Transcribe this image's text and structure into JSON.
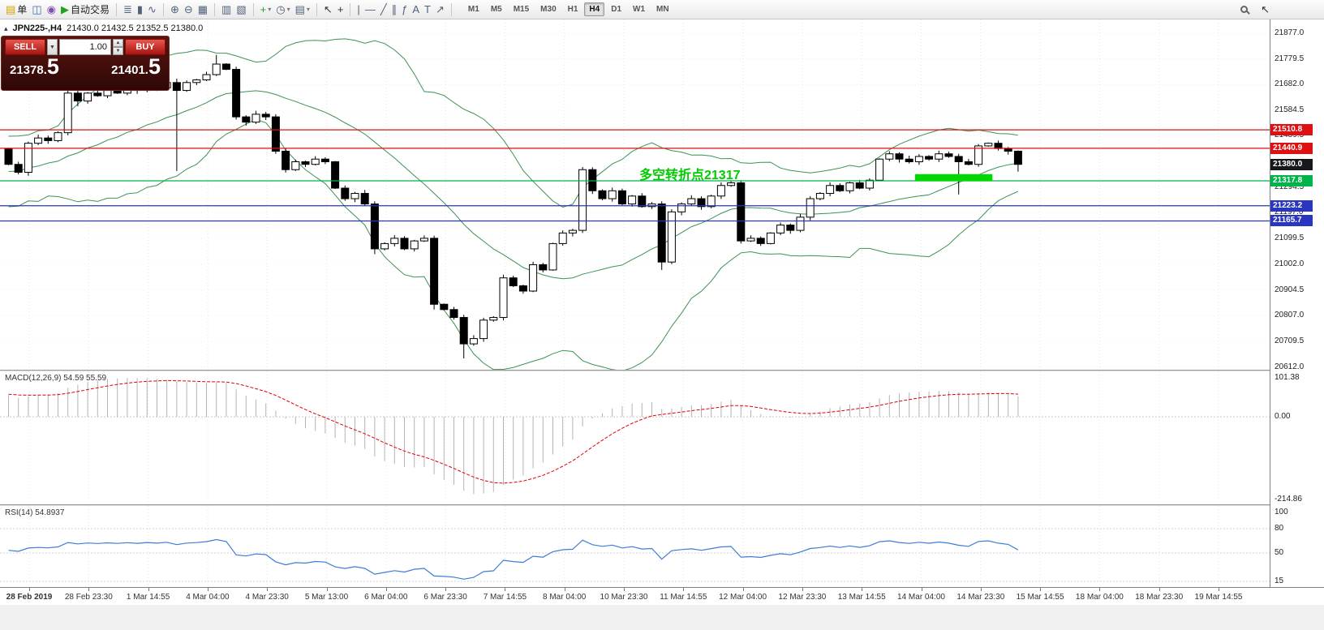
{
  "window": {
    "title_symbol": "JPN225-,H4",
    "title_ohlc": "21430.0 21432.5 21352.5 21380.0"
  },
  "toolbar": {
    "pointer_glyph": "↖",
    "groups": [
      {
        "items": [
          {
            "name": "new-order-button",
            "glyph": "▤",
            "glyph_color": "#d6a400",
            "label": "单"
          },
          {
            "name": "chart-window-button",
            "glyph": "◫",
            "glyph_color": "#3f6fae"
          },
          {
            "name": "navigator-button",
            "glyph": "◉",
            "glyph_color": "#7d4fae"
          },
          {
            "name": "autotrading-button",
            "glyph": "▶",
            "glyph_color": "#1ea51e",
            "label": "自动交易"
          }
        ]
      },
      {
        "items": [
          {
            "name": "bars-chart-button",
            "glyph": "≣",
            "glyph_color": "#51617a"
          },
          {
            "name": "candlestick-chart-button",
            "glyph": "▮",
            "glyph_color": "#51617a"
          },
          {
            "name": "line-chart-button",
            "glyph": "∿",
            "glyph_color": "#51617a"
          }
        ]
      },
      {
        "items": [
          {
            "name": "zoom-in-button",
            "glyph": "⊕",
            "glyph_color": "#51617a"
          },
          {
            "name": "zoom-out-button",
            "glyph": "⊖",
            "glyph_color": "#51617a"
          },
          {
            "name": "tile-windows-button",
            "glyph": "▦",
            "glyph_color": "#51617a"
          }
        ]
      },
      {
        "items": [
          {
            "name": "cascade-windows-button",
            "glyph": "▥",
            "glyph_color": "#51617a"
          },
          {
            "name": "arrange-windows-button",
            "glyph": "▧",
            "glyph_color": "#51617a"
          }
        ]
      },
      {
        "items": [
          {
            "name": "indicators-button",
            "glyph": "+",
            "glyph_color": "#1ea51e",
            "caret": true
          },
          {
            "name": "periods-button",
            "glyph": "◷",
            "glyph_color": "#51617a",
            "caret": true
          },
          {
            "name": "templates-button",
            "glyph": "▤",
            "glyph_color": "#51617a",
            "caret": true
          }
        ]
      },
      {
        "items": [
          {
            "name": "cursor-button",
            "glyph": "↖",
            "glyph_color": "#333333"
          },
          {
            "name": "crosshair-button",
            "glyph": "+",
            "glyph_color": "#333333"
          }
        ]
      },
      {
        "items": [
          {
            "name": "vertical-line-button",
            "glyph": "|",
            "glyph_color": "#51617a"
          },
          {
            "name": "horizontal-line-button",
            "glyph": "—",
            "glyph_color": "#51617a"
          },
          {
            "name": "trendline-button",
            "glyph": "╱",
            "glyph_color": "#51617a"
          },
          {
            "name": "channel-button",
            "glyph": "∥",
            "glyph_color": "#51617a"
          },
          {
            "name": "fibonacci-button",
            "glyph": "ƒ",
            "glyph_color": "#51617a"
          },
          {
            "name": "text-button",
            "glyph": "A",
            "glyph_color": "#51617a"
          },
          {
            "name": "label-button",
            "glyph": "T",
            "glyph_color": "#51617a"
          },
          {
            "name": "arrows-button",
            "glyph": "↗",
            "glyph_color": "#51617a"
          }
        ]
      }
    ],
    "timeframes": [
      "M1",
      "M5",
      "M15",
      "M30",
      "H1",
      "H4",
      "D1",
      "W1",
      "MN"
    ],
    "active_timeframe": "H4"
  },
  "trade_panel": {
    "sell_label": "SELL",
    "buy_label": "BUY",
    "volume": "1.00",
    "sell_price": {
      "base": "21378.",
      "big": "5"
    },
    "buy_price": {
      "base": "21401.",
      "big": "5"
    }
  },
  "chart": {
    "annotation": {
      "text": "多空转折点21317",
      "color": "#00cc00"
    },
    "price_axis_labels": [
      "21877.0",
      "21779.5",
      "21682.0",
      "21584.5",
      "21489.5",
      "21294.5",
      "21197.0",
      "21099.5",
      "21002.0",
      "20904.5",
      "20807.0",
      "20709.5",
      "20612.0"
    ],
    "price_tags": [
      {
        "value": "21510.8",
        "price": 21510.8,
        "color": "#dd1111"
      },
      {
        "value": "21440.9",
        "price": 21440.9,
        "color": "#dd1111"
      },
      {
        "value": "21380.0",
        "price": 21380.0,
        "color": "#15181c"
      },
      {
        "value": "21317.8",
        "price": 21317.8,
        "color": "#00b44a"
      },
      {
        "value": "21223.2",
        "price": 21223.2,
        "color": "#2a35c0"
      },
      {
        "value": "21165.7",
        "price": 21165.7,
        "color": "#2a35c0"
      }
    ],
    "hlines": [
      {
        "price": 21510.8,
        "color": "#dd1111"
      },
      {
        "price": 21440.9,
        "color": "#dd1111"
      },
      {
        "price": 21317.8,
        "color": "#00b44a"
      },
      {
        "price": 21223.2,
        "color": "#2a35c0"
      },
      {
        "price": 21165.7,
        "color": "#2a35c0"
      }
    ],
    "highlight": {
      "i1": 92,
      "i2": 99,
      "price_top": 21343,
      "price_bottom": 21316,
      "color": "#00d800"
    },
    "time_labels": [
      "28 Feb 2019",
      "28 Feb 23:30",
      "1 Mar 14:55",
      "4 Mar 04:00",
      "4 Mar 23:30",
      "5 Mar 13:00",
      "6 Mar 04:00",
      "6 Mar 23:30",
      "7 Mar 14:55",
      "8 Mar 04:00",
      "10 Mar 23:30",
      "11 Mar 14:55",
      "12 Mar 04:00",
      "12 Mar 23:30",
      "13 Mar 14:55",
      "14 Mar 04:00",
      "14 Mar 23:30",
      "15 Mar 14:55",
      "18 Mar 04:00",
      "18 Mar 23:30",
      "19 Mar 14:55"
    ]
  },
  "macd": {
    "label": "MACD(12,26,9) 54.59 55.59",
    "axis_labels": [
      "101.38",
      "0.00",
      "-214.86"
    ],
    "params": [
      12,
      26,
      9
    ]
  },
  "rsi": {
    "label": "RSI(14) 54.8937",
    "axis_labels": [
      "100",
      "80",
      "50",
      "15"
    ],
    "period": 14,
    "levels": [
      80,
      50,
      15
    ]
  },
  "chart_data": {
    "type": "candlestick",
    "symbol": "JPN225-",
    "timeframe": "H4",
    "title": "JPN225-,H4",
    "last_ohlc": {
      "open": 21430.0,
      "high": 21432.5,
      "low": 21352.5,
      "close": 21380.0
    },
    "ylim": [
      20602,
      21929
    ],
    "x0": 10.5,
    "dx": 12.2,
    "open_first": 21440,
    "closes": [
      21380,
      21350,
      21460,
      21480,
      21470,
      21500,
      21650,
      21620,
      21650,
      21640,
      21660,
      21650,
      21670,
      21660,
      21680,
      21670,
      21690,
      21660,
      21690,
      21700,
      21720,
      21760,
      21740,
      21560,
      21540,
      21570,
      21560,
      21430,
      21360,
      21390,
      21380,
      21400,
      21390,
      21290,
      21250,
      21270,
      21230,
      21060,
      21080,
      21100,
      21060,
      21090,
      21100,
      20850,
      20830,
      20800,
      20700,
      20720,
      20790,
      20800,
      20950,
      20920,
      20900,
      21000,
      20980,
      21080,
      21120,
      21130,
      21360,
      21280,
      21250,
      21280,
      21230,
      21260,
      21220,
      21230,
      21010,
      21200,
      21230,
      21250,
      21220,
      21260,
      21300,
      21310,
      21090,
      21100,
      21080,
      21120,
      21150,
      21130,
      21180,
      21250,
      21270,
      21300,
      21280,
      21310,
      21290,
      21320,
      21400,
      21420,
      21400,
      21390,
      21410,
      21400,
      21420,
      21410,
      21390,
      21380,
      21450,
      21460,
      21440,
      21430,
      21380
    ],
    "history_closes": [
      21100,
      21220,
      21120,
      21240,
      21140,
      21260,
      21160,
      21280,
      21180,
      21300,
      21200,
      21320,
      21220,
      21340,
      21240,
      21360,
      21260,
      21380,
      21280,
      21400,
      21300,
      21420,
      21320,
      21430,
      21340,
      21440,
      21360,
      21450,
      21380,
      21440
    ],
    "overrides": {
      "6": [
        21500,
        21745,
        21490,
        21650
      ],
      "7": [
        21650,
        21795,
        21600,
        21620
      ],
      "17": [
        21690,
        21705,
        21355,
        21660
      ],
      "21": [
        21720,
        21795,
        21715,
        21760
      ],
      "23": [
        21740,
        21750,
        21550,
        21560
      ],
      "27": [
        21560,
        21570,
        21420,
        21430
      ],
      "37": [
        21230,
        21240,
        21040,
        21060
      ],
      "43": [
        21100,
        21110,
        20830,
        20850
      ],
      "46": [
        20800,
        20810,
        20645,
        20700
      ],
      "58": [
        21130,
        21370,
        21120,
        21360
      ],
      "66": [
        21230,
        21240,
        20980,
        21010
      ],
      "74": [
        21310,
        21320,
        21080,
        21090
      ],
      "96": [
        21410,
        21420,
        21266,
        21390
      ],
      "102": [
        21430,
        21432.5,
        21352.5,
        21380
      ]
    },
    "bollinger": {
      "period": 20,
      "deviation": 2
    }
  }
}
